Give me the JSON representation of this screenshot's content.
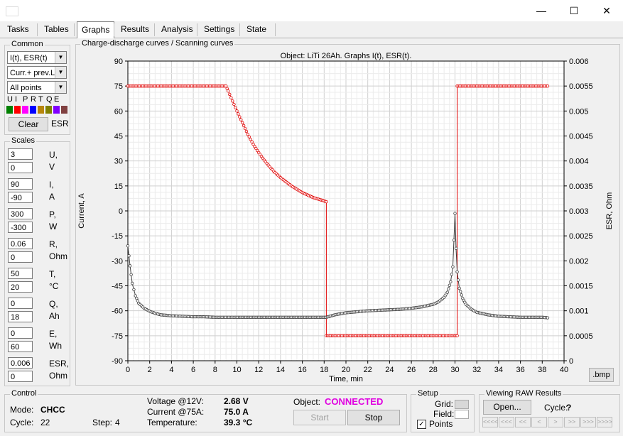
{
  "window": {
    "minimize": "—",
    "maximize": "☐",
    "close": "✕"
  },
  "tabs": [
    {
      "label": "Tasks",
      "active": false
    },
    {
      "label": "Tables",
      "active": false
    },
    {
      "label": "Graphs",
      "active": true
    },
    {
      "label": "Results",
      "active": false
    },
    {
      "label": "Analysis",
      "active": false
    },
    {
      "label": "Settings",
      "active": false
    },
    {
      "label": "State",
      "active": false
    }
  ],
  "common": {
    "title": "Common",
    "graph_select": "I(t), ESR(t)",
    "curve_select": "Curr.+ prev.L",
    "points_select": "All points",
    "channel_letters": [
      "U",
      "I",
      "P",
      "R",
      "T",
      "Q",
      "E"
    ],
    "channel_colors": [
      "#008000",
      "#ff0000",
      "#ff00ff",
      "#0000ff",
      "#b8860b",
      "#808000",
      "#8000ff",
      "#804040"
    ],
    "clear_label": "Clear",
    "esr_label": "ESR"
  },
  "scales": {
    "title": "Scales",
    "rows": [
      {
        "max": "3",
        "min": "0",
        "name": "U,",
        "unit": "V"
      },
      {
        "max": "90",
        "min": "-90",
        "name": "I,",
        "unit": "A"
      },
      {
        "max": "300",
        "min": "-300",
        "name": "P,",
        "unit": "W"
      },
      {
        "max": "0.06",
        "min": "0",
        "name": "R,",
        "unit": "Ohm"
      },
      {
        "max": "50",
        "min": "20",
        "name": "T,",
        "unit": "°C"
      },
      {
        "max": "0",
        "min": "18",
        "name": "Q,",
        "unit": "Ah"
      },
      {
        "max": "0",
        "min": "60",
        "name": "E,",
        "unit": "Wh"
      },
      {
        "max": "0.006",
        "min": "0",
        "name": "ESR,",
        "unit": "Ohm"
      }
    ]
  },
  "graph_panel": {
    "title": "Charge-discharge curves / Scanning curves",
    "bmp_label": ".bmp"
  },
  "chart_data": {
    "type": "line",
    "title": "Object: LiTi 26Ah. Graphs I(t), ESR(t).",
    "xlabel": "Time, min",
    "ylabel": "Current, A",
    "y2label": "ESR, Ohm",
    "xlim": [
      0,
      40
    ],
    "ylim": [
      -90,
      90
    ],
    "y2lim": [
      0,
      0.006
    ],
    "x_ticks": [
      "0",
      "2",
      "4",
      "6",
      "8",
      "10",
      "12",
      "14",
      "16",
      "18",
      "20",
      "22",
      "24",
      "26",
      "28",
      "30",
      "32",
      "34",
      "36",
      "38",
      "40"
    ],
    "y_ticks": [
      "90",
      "75",
      "60",
      "45",
      "30",
      "15",
      "0",
      "-15",
      "-30",
      "-45",
      "-60",
      "-75",
      "-90"
    ],
    "y2_ticks": [
      "0.006",
      "0.0055",
      "0.005",
      "0.0045",
      "0.004",
      "0.0035",
      "0.003",
      "0.0025",
      "0.002",
      "0.0015",
      "0.001",
      "0.0005",
      "0"
    ],
    "grid": true,
    "series": [
      {
        "axis": "left",
        "color": "#e00000",
        "x": [
          0,
          1,
          2,
          3,
          4,
          5,
          6,
          7,
          8,
          9,
          9.2,
          9.6,
          10,
          10.5,
          11,
          11.5,
          12,
          12.5,
          13,
          13.5,
          14,
          14.5,
          15,
          15.5,
          16,
          16.5,
          17,
          17.5,
          18,
          18.2,
          18.2,
          19,
          20,
          22,
          24,
          26,
          28,
          29,
          30,
          30.1,
          30.2,
          30.2,
          32,
          34,
          36,
          38,
          38.5
        ],
        "y": [
          75,
          75,
          75,
          75,
          75,
          75,
          75,
          75,
          75,
          75,
          72,
          66,
          60,
          53,
          46,
          40,
          35,
          30.5,
          26.5,
          23,
          20,
          17.5,
          15,
          13,
          11,
          9.5,
          8,
          7,
          6,
          5.5,
          -75,
          -75,
          -75,
          -75,
          -75,
          -75,
          -75,
          -75,
          -75,
          -75,
          -75,
          75,
          75,
          75,
          75,
          75,
          75
        ]
      },
      {
        "axis": "right",
        "color": "#404040",
        "x": [
          0,
          0.2,
          0.4,
          0.7,
          1,
          1.5,
          2,
          2.5,
          3,
          4,
          5,
          6,
          7,
          8,
          9,
          10,
          12,
          14,
          16,
          18,
          18.2,
          19,
          20,
          21,
          22,
          23,
          24,
          25,
          26,
          27,
          28,
          28.5,
          29,
          29.3,
          29.6,
          29.8,
          30,
          30.1,
          30.2,
          30.4,
          30.7,
          31,
          31.5,
          32,
          33,
          34,
          35,
          36,
          37,
          38,
          38.5
        ],
        "y": [
          0.0023,
          0.0019,
          0.00155,
          0.0013,
          0.00115,
          0.00105,
          0.00099,
          0.00095,
          0.00092,
          0.0009,
          0.00089,
          0.00088,
          0.00088,
          0.00087,
          0.00087,
          0.00087,
          0.00087,
          0.00087,
          0.00087,
          0.00087,
          0.00087,
          0.00092,
          0.00096,
          0.00098,
          0.001,
          0.00101,
          0.00102,
          0.00103,
          0.00105,
          0.00108,
          0.00113,
          0.00118,
          0.00127,
          0.00137,
          0.00158,
          0.00188,
          0.00295,
          0.00225,
          0.00178,
          0.00145,
          0.00125,
          0.00113,
          0.00103,
          0.00097,
          0.00092,
          0.00089,
          0.00088,
          0.00087,
          0.00087,
          0.00087,
          0.00086
        ]
      }
    ]
  },
  "control": {
    "title": "Control",
    "mode_label": "Mode:",
    "mode_value": "CHCC",
    "cycle_label": "Cycle:",
    "cycle_value": "22",
    "step_label": "Step:",
    "step_value": "4",
    "voltage_label": "Voltage @12V:",
    "voltage_value": "2.68 V",
    "current_label": "Current @75A:",
    "current_value": "75.0 A",
    "temp_label": "Temperature:",
    "temp_value": "39.3 °C",
    "object_label": "Object:",
    "object_value": "CONNECTED",
    "start_label": "Start",
    "stop_label": "Stop"
  },
  "setup": {
    "title": "Setup",
    "grid_label": "Grid:",
    "field_label": "Field:",
    "points_label": "Points",
    "points_checked": true
  },
  "raw": {
    "title": "Viewing RAW Results",
    "open_label": "Open...",
    "cycle_label": "Cycle:",
    "cycle_value": "?",
    "nav": [
      "<<<<",
      "<<<",
      "<<",
      "<",
      ">",
      ">>",
      ">>>",
      ">>>>"
    ]
  }
}
